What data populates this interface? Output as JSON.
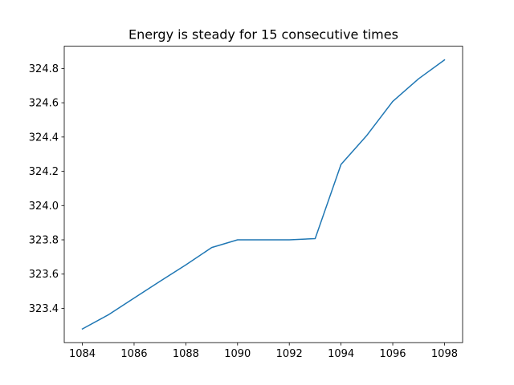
{
  "chart_data": {
    "type": "line",
    "title": "Energy is steady for 15 consecutive times",
    "xlabel": "",
    "ylabel": "",
    "x": [
      1084,
      1085,
      1086,
      1087,
      1088,
      1089,
      1090,
      1091,
      1092,
      1093,
      1094,
      1095,
      1096,
      1097,
      1098
    ],
    "series": [
      {
        "values": [
          323.28,
          323.362,
          323.46,
          323.558,
          323.654,
          323.755,
          323.8,
          323.8,
          323.8,
          323.807,
          324.24,
          324.41,
          324.608,
          324.74,
          324.85
        ]
      }
    ],
    "xlim": [
      1083.3,
      1098.7
    ],
    "ylim": [
      323.2,
      324.93
    ],
    "xticks": [
      1084,
      1086,
      1088,
      1090,
      1092,
      1094,
      1096,
      1098
    ],
    "yticks": [
      323.4,
      323.6,
      323.8,
      324.0,
      324.2,
      324.4,
      324.6,
      324.8
    ],
    "xtick_labels": [
      "1084",
      "1086",
      "1088",
      "1090",
      "1092",
      "1094",
      "1096",
      "1098"
    ],
    "ytick_labels": [
      "323.4",
      "323.6",
      "323.8",
      "324.0",
      "324.2",
      "324.4",
      "324.6",
      "324.8"
    ],
    "grid": false,
    "legend": "none",
    "line_color": "#1f77b4"
  }
}
